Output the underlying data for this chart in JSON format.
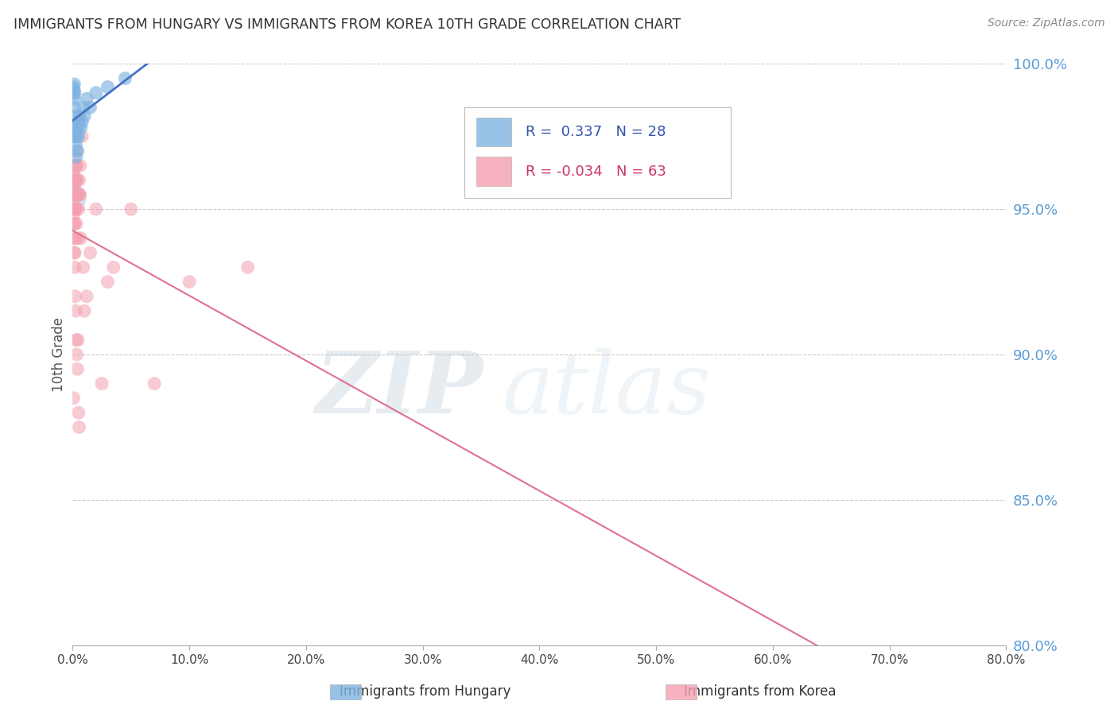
{
  "title": "IMMIGRANTS FROM HUNGARY VS IMMIGRANTS FROM KOREA 10TH GRADE CORRELATION CHART",
  "source": "Source: ZipAtlas.com",
  "ylabel": "10th Grade",
  "right_ylabel_ticks": [
    80.0,
    85.0,
    90.0,
    95.0,
    100.0
  ],
  "xlim": [
    0.0,
    80.0
  ],
  "ylim": [
    80.0,
    100.0
  ],
  "hungary_R": 0.337,
  "hungary_N": 28,
  "korea_R": -0.034,
  "korea_N": 63,
  "hungary_color": "#7EB3E0",
  "korea_color": "#F4A0B0",
  "hungary_line_color": "#4472C4",
  "korea_line_color": "#E07090",
  "grid_color": "#CCCCCC",
  "right_axis_color": "#5B9BD5",
  "title_color": "#333333",
  "hungary_scatter_x": [
    0.05,
    0.08,
    0.1,
    0.12,
    0.13,
    0.14,
    0.16,
    0.18,
    0.2,
    0.22,
    0.25,
    0.28,
    0.3,
    0.35,
    0.4,
    0.45,
    0.5,
    0.55,
    0.6,
    0.7,
    0.8,
    0.9,
    1.0,
    1.2,
    1.5,
    2.0,
    3.0,
    4.5
  ],
  "hungary_scatter_y": [
    99.2,
    99.0,
    98.8,
    99.1,
    99.3,
    98.5,
    99.0,
    98.2,
    97.8,
    97.5,
    97.8,
    97.2,
    96.8,
    97.5,
    97.0,
    97.8,
    97.5,
    98.0,
    98.2,
    97.8,
    98.0,
    98.5,
    98.2,
    98.8,
    98.5,
    99.0,
    99.2,
    99.5
  ],
  "korea_scatter_x": [
    0.02,
    0.04,
    0.05,
    0.06,
    0.07,
    0.08,
    0.09,
    0.1,
    0.11,
    0.12,
    0.13,
    0.14,
    0.15,
    0.16,
    0.17,
    0.18,
    0.2,
    0.22,
    0.25,
    0.28,
    0.3,
    0.32,
    0.35,
    0.38,
    0.4,
    0.42,
    0.45,
    0.5,
    0.55,
    0.6,
    0.65,
    0.7,
    0.8,
    0.9,
    1.0,
    1.2,
    1.5,
    2.0,
    2.5,
    3.0,
    0.08,
    0.1,
    0.12,
    0.15,
    0.18,
    0.2,
    0.25,
    0.3,
    0.35,
    0.4,
    0.45,
    0.5,
    0.55,
    0.3,
    0.4,
    3.5,
    5.0,
    7.0,
    10.0,
    15.0,
    0.2,
    0.25,
    0.6
  ],
  "korea_scatter_y": [
    95.8,
    96.2,
    95.5,
    96.0,
    95.2,
    94.8,
    95.5,
    96.2,
    95.0,
    94.5,
    95.8,
    95.0,
    94.5,
    96.0,
    95.5,
    96.5,
    95.5,
    94.0,
    95.0,
    96.0,
    95.0,
    94.5,
    96.5,
    95.5,
    97.0,
    95.5,
    94.0,
    95.0,
    96.0,
    95.5,
    96.5,
    94.0,
    97.5,
    93.0,
    91.5,
    92.0,
    93.5,
    95.0,
    89.0,
    92.5,
    88.5,
    94.0,
    93.5,
    93.0,
    93.5,
    92.0,
    91.5,
    90.5,
    90.0,
    89.5,
    90.5,
    88.0,
    87.5,
    96.5,
    96.0,
    93.0,
    95.0,
    89.0,
    92.5,
    93.0,
    97.5,
    96.0,
    95.5
  ],
  "legend_hungary_text": "R =  0.337   N = 28",
  "legend_korea_text": "R = -0.034   N = 63",
  "bottom_legend_hungary": "Immigrants from Hungary",
  "bottom_legend_korea": "Immigrants from Korea"
}
